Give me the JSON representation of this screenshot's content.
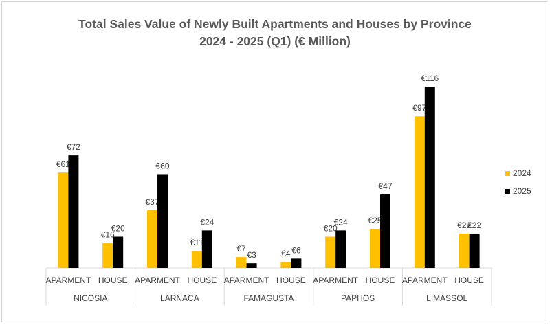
{
  "chart_data": {
    "type": "bar",
    "title": "Total Sales Value of Newly Built Apartments and Houses by Province",
    "subtitle": "2024 - 2025 (Q1) (€ Million)",
    "currency_prefix": "€",
    "groups": [
      {
        "province": "NICOSIA",
        "categories": [
          "APARMENT",
          "HOUSE"
        ]
      },
      {
        "province": "LARNACA",
        "categories": [
          "APARMENT",
          "HOUSE"
        ]
      },
      {
        "province": "FAMAGUSTA",
        "categories": [
          "APARMENT",
          "HOUSE"
        ]
      },
      {
        "province": "PAPHOS",
        "categories": [
          "APARMENT",
          "HOUSE"
        ]
      },
      {
        "province": "LIMASSOL",
        "categories": [
          "APARMENT",
          "HOUSE"
        ]
      }
    ],
    "series": [
      {
        "name": "2024",
        "color": "#FFC000",
        "values": [
          61,
          16,
          37,
          11,
          7,
          4,
          20,
          25,
          97,
          22
        ]
      },
      {
        "name": "2025",
        "color": "#000000",
        "values": [
          72,
          20,
          60,
          24,
          3,
          6,
          24,
          47,
          116,
          22
        ]
      }
    ],
    "ylim": [
      0,
      116
    ],
    "grid": false,
    "legend_position": "right"
  }
}
